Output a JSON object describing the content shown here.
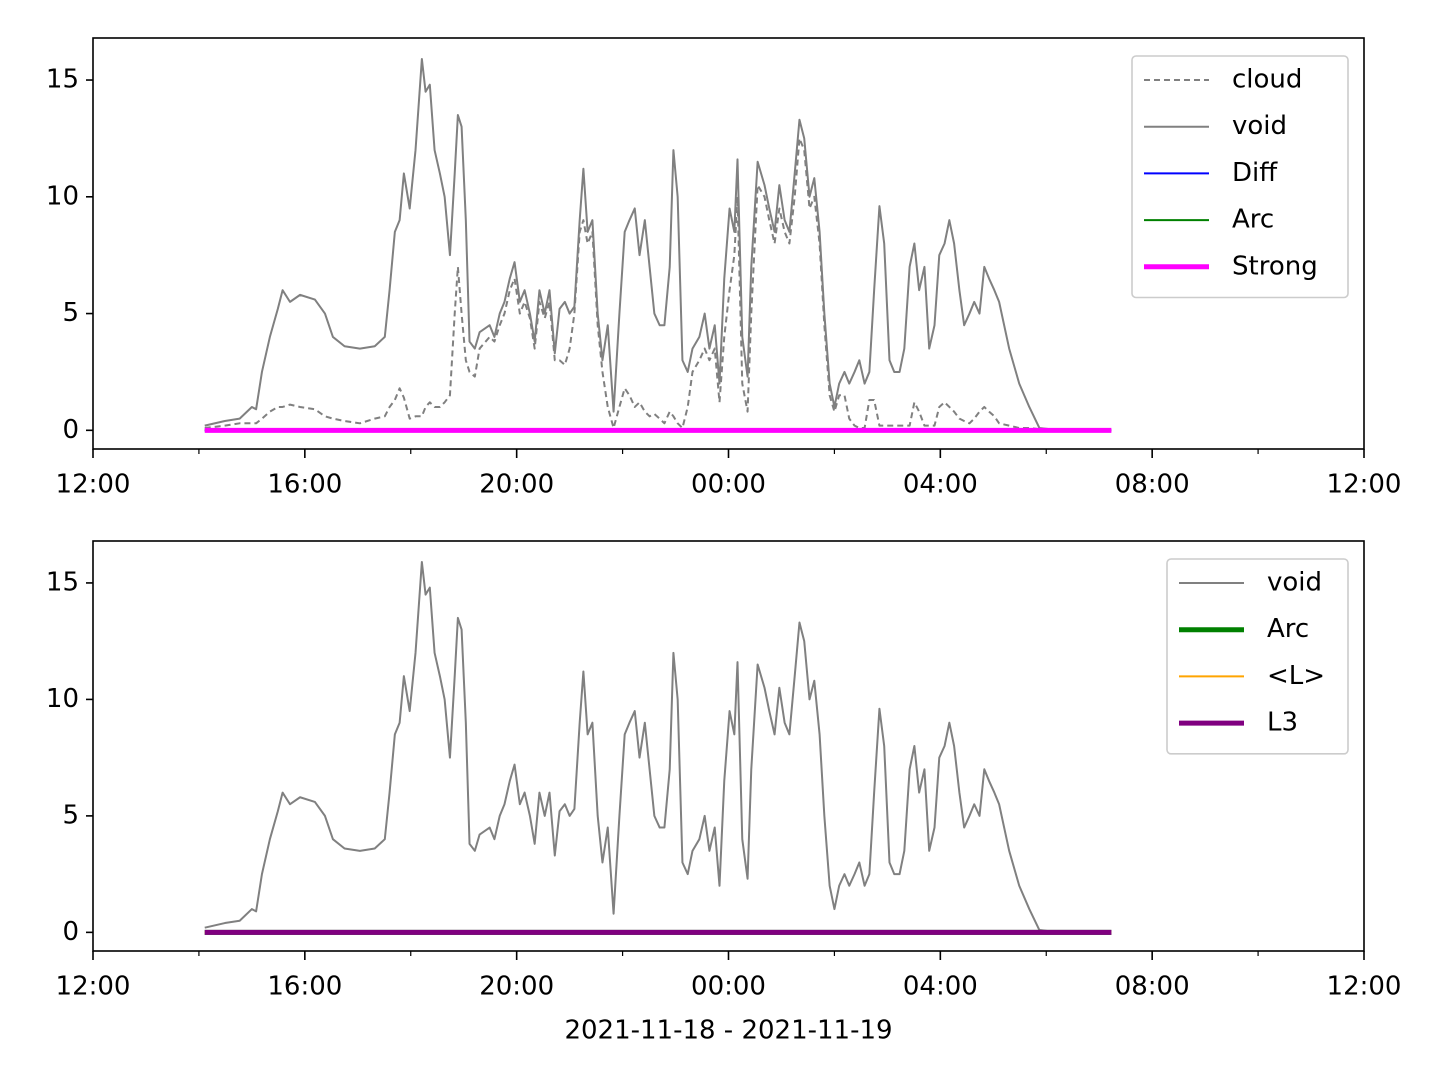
{
  "chart_data": [
    {
      "type": "line",
      "x": [
        14.11,
        14.49,
        14.77,
        15.0,
        15.08,
        15.19,
        15.34,
        15.49,
        15.58,
        15.72,
        15.91,
        16.19,
        16.38,
        16.53,
        16.75,
        17.04,
        17.32,
        17.51,
        17.6,
        17.7,
        17.79,
        17.87,
        17.98,
        18.09,
        18.21,
        18.28,
        18.36,
        18.45,
        18.55,
        18.64,
        18.74,
        18.83,
        18.89,
        18.96,
        19.04,
        19.11,
        19.21,
        19.3,
        19.49,
        19.58,
        19.68,
        19.77,
        19.87,
        19.96,
        20.06,
        20.15,
        20.25,
        20.34,
        20.43,
        20.53,
        20.62,
        20.72,
        20.81,
        20.91,
        21.0,
        21.09,
        21.19,
        21.26,
        21.34,
        21.43,
        21.53,
        21.62,
        21.72,
        21.83,
        21.94,
        22.04,
        22.13,
        22.23,
        22.32,
        22.42,
        22.51,
        22.6,
        22.7,
        22.79,
        22.89,
        22.96,
        23.04,
        23.13,
        23.23,
        23.32,
        23.45,
        23.55,
        23.64,
        23.74,
        23.83,
        23.92,
        24.02,
        24.11,
        24.17,
        24.26,
        24.36,
        24.43,
        24.55,
        24.68,
        24.77,
        24.87,
        24.96,
        25.06,
        25.15,
        25.25,
        25.34,
        25.43,
        25.53,
        25.62,
        25.72,
        25.81,
        25.91,
        26.0,
        26.09,
        26.19,
        26.28,
        26.38,
        26.47,
        26.57,
        26.66,
        26.75,
        26.85,
        26.94,
        27.04,
        27.13,
        27.23,
        27.32,
        27.42,
        27.51,
        27.6,
        27.7,
        27.79,
        27.89,
        27.98,
        28.08,
        28.17,
        28.26,
        28.36,
        28.45,
        28.55,
        28.64,
        28.74,
        28.83,
        28.92,
        29.02,
        29.11,
        29.3,
        29.49,
        29.68,
        29.87,
        30.06,
        30.62,
        31.19
      ],
      "series": [
        {
          "name": "cloud",
          "color": "#808080",
          "linestyle": "dashed",
          "linewidth": 2,
          "values": [
            0.1,
            0.2,
            0.3,
            0.3,
            0.3,
            0.5,
            0.8,
            1.0,
            1.0,
            1.1,
            1.0,
            0.9,
            0.6,
            0.5,
            0.4,
            0.3,
            0.5,
            0.6,
            1.0,
            1.3,
            1.8,
            1.4,
            0.5,
            0.6,
            0.6,
            1.0,
            1.2,
            1.0,
            1.0,
            1.2,
            1.5,
            5.0,
            7.0,
            5.0,
            3.0,
            2.5,
            2.3,
            3.5,
            4.0,
            3.8,
            4.5,
            5.0,
            6.0,
            6.5,
            5.0,
            5.5,
            4.8,
            3.5,
            5.5,
            4.8,
            5.5,
            3.0,
            3.0,
            2.8,
            3.5,
            5.0,
            8.5,
            9.0,
            8.0,
            8.5,
            4.5,
            2.5,
            1.0,
            0.1,
            1.0,
            1.8,
            1.5,
            1.0,
            1.2,
            0.8,
            0.6,
            0.7,
            0.5,
            0.3,
            0.8,
            0.6,
            0.3,
            0.1,
            1.0,
            2.5,
            3.0,
            3.5,
            3.0,
            3.5,
            1.2,
            4.0,
            6.0,
            7.5,
            10.0,
            2.0,
            0.8,
            5.0,
            10.5,
            10.0,
            9.0,
            8.0,
            9.5,
            8.5,
            8.0,
            10.0,
            12.5,
            12.0,
            9.5,
            10.0,
            8.0,
            4.5,
            1.5,
            0.8,
            1.5,
            1.5,
            0.5,
            0.2,
            0.1,
            0.1,
            1.3,
            1.3,
            0.2,
            0.2,
            0.2,
            0.2,
            0.2,
            0.2,
            0.2,
            1.2,
            0.8,
            0.2,
            0.2,
            0.2,
            1.0,
            1.2,
            1.0,
            0.8,
            0.5,
            0.4,
            0.3,
            0.5,
            0.8,
            1.0,
            0.8,
            0.6,
            0.3,
            0.2,
            0.1,
            0.1,
            0.05,
            0.05,
            0.05,
            0.0
          ]
        },
        {
          "name": "void",
          "color": "#808080",
          "linewidth": 2,
          "values": [
            0.2,
            0.4,
            0.5,
            1.0,
            0.9,
            2.5,
            4.0,
            5.2,
            6.0,
            5.5,
            5.8,
            5.6,
            5.0,
            4.0,
            3.6,
            3.5,
            3.6,
            4.0,
            6.0,
            8.5,
            9.0,
            11.0,
            9.5,
            12.0,
            15.9,
            14.5,
            14.8,
            12.0,
            11.0,
            10.0,
            7.5,
            11.0,
            13.5,
            13.0,
            9.0,
            3.8,
            3.5,
            4.2,
            4.5,
            4.0,
            5.0,
            5.5,
            6.5,
            7.2,
            5.5,
            6.0,
            5.0,
            3.8,
            6.0,
            5.0,
            6.0,
            3.3,
            5.2,
            5.5,
            5.0,
            5.3,
            9.0,
            11.2,
            8.5,
            9.0,
            5.0,
            3.0,
            4.5,
            0.8,
            5.0,
            8.5,
            9.0,
            9.5,
            7.5,
            9.0,
            7.0,
            5.0,
            4.5,
            4.5,
            7.0,
            12.0,
            10.0,
            3.0,
            2.5,
            3.5,
            4.0,
            5.0,
            3.5,
            4.5,
            2.0,
            6.5,
            9.5,
            8.5,
            11.6,
            4.0,
            2.3,
            7.0,
            11.5,
            10.5,
            9.5,
            8.5,
            10.5,
            9.0,
            8.5,
            11.0,
            13.3,
            12.5,
            10.0,
            10.8,
            8.5,
            5.0,
            2.0,
            1.0,
            2.0,
            2.5,
            2.0,
            2.5,
            3.0,
            2.0,
            2.5,
            6.0,
            9.6,
            8.0,
            3.0,
            2.5,
            2.5,
            3.5,
            7.0,
            8.0,
            6.0,
            7.0,
            3.5,
            4.5,
            7.5,
            8.0,
            9.0,
            8.0,
            6.0,
            4.5,
            5.0,
            5.5,
            5.0,
            7.0,
            6.5,
            6.0,
            5.5,
            3.5,
            2.0,
            1.0,
            0.1,
            0.05,
            0.05,
            0.0
          ]
        },
        {
          "name": "Diff",
          "color": "#0000ff",
          "linewidth": 2,
          "x": [
            14.11,
            31.23
          ],
          "values": [
            0,
            0
          ]
        },
        {
          "name": "Arc",
          "color": "#008000",
          "linewidth": 2,
          "x": [
            14.11,
            31.23
          ],
          "values": [
            0,
            0
          ]
        },
        {
          "name": "Strong",
          "color": "#ff00ff",
          "linewidth": 5,
          "x": [
            14.11,
            31.23
          ],
          "values": [
            0,
            0
          ]
        }
      ],
      "xlim": [
        12,
        36
      ],
      "xticks": [
        {
          "value": 12,
          "label": "12:00"
        },
        {
          "value": 16,
          "label": "16:00"
        },
        {
          "value": 20,
          "label": "20:00"
        },
        {
          "value": 24,
          "label": "00:00"
        },
        {
          "value": 28,
          "label": "04:00"
        },
        {
          "value": 32,
          "label": "08:00"
        },
        {
          "value": 36,
          "label": "12:00"
        }
      ],
      "xminor": [
        14,
        18,
        22,
        26,
        30,
        34
      ],
      "ylim": [
        -0.8,
        16.8
      ],
      "yticks": [
        0,
        5,
        10,
        15
      ],
      "legend": "upper right"
    },
    {
      "type": "line",
      "x": [
        14.11,
        14.49,
        14.77,
        15.0,
        15.08,
        15.19,
        15.34,
        15.49,
        15.58,
        15.72,
        15.91,
        16.19,
        16.38,
        16.53,
        16.75,
        17.04,
        17.32,
        17.51,
        17.6,
        17.7,
        17.79,
        17.87,
        17.98,
        18.09,
        18.21,
        18.28,
        18.36,
        18.45,
        18.55,
        18.64,
        18.74,
        18.83,
        18.89,
        18.96,
        19.04,
        19.11,
        19.21,
        19.3,
        19.49,
        19.58,
        19.68,
        19.77,
        19.87,
        19.96,
        20.06,
        20.15,
        20.25,
        20.34,
        20.43,
        20.53,
        20.62,
        20.72,
        20.81,
        20.91,
        21.0,
        21.09,
        21.19,
        21.26,
        21.34,
        21.43,
        21.53,
        21.62,
        21.72,
        21.83,
        21.94,
        22.04,
        22.13,
        22.23,
        22.32,
        22.42,
        22.51,
        22.6,
        22.7,
        22.79,
        22.89,
        22.96,
        23.04,
        23.13,
        23.23,
        23.32,
        23.45,
        23.55,
        23.64,
        23.74,
        23.83,
        23.92,
        24.02,
        24.11,
        24.17,
        24.26,
        24.36,
        24.43,
        24.55,
        24.68,
        24.77,
        24.87,
        24.96,
        25.06,
        25.15,
        25.25,
        25.34,
        25.43,
        25.53,
        25.62,
        25.72,
        25.81,
        25.91,
        26.0,
        26.09,
        26.19,
        26.28,
        26.38,
        26.47,
        26.57,
        26.66,
        26.75,
        26.85,
        26.94,
        27.04,
        27.13,
        27.23,
        27.32,
        27.42,
        27.51,
        27.6,
        27.7,
        27.79,
        27.89,
        27.98,
        28.08,
        28.17,
        28.26,
        28.36,
        28.45,
        28.55,
        28.64,
        28.74,
        28.83,
        28.92,
        29.02,
        29.11,
        29.3,
        29.49,
        29.68,
        29.87,
        30.06,
        30.62,
        31.19
      ],
      "series": [
        {
          "name": "void",
          "color": "#808080",
          "linewidth": 2,
          "values": [
            0.2,
            0.4,
            0.5,
            1.0,
            0.9,
            2.5,
            4.0,
            5.2,
            6.0,
            5.5,
            5.8,
            5.6,
            5.0,
            4.0,
            3.6,
            3.5,
            3.6,
            4.0,
            6.0,
            8.5,
            9.0,
            11.0,
            9.5,
            12.0,
            15.9,
            14.5,
            14.8,
            12.0,
            11.0,
            10.0,
            7.5,
            11.0,
            13.5,
            13.0,
            9.0,
            3.8,
            3.5,
            4.2,
            4.5,
            4.0,
            5.0,
            5.5,
            6.5,
            7.2,
            5.5,
            6.0,
            5.0,
            3.8,
            6.0,
            5.0,
            6.0,
            3.3,
            5.2,
            5.5,
            5.0,
            5.3,
            9.0,
            11.2,
            8.5,
            9.0,
            5.0,
            3.0,
            4.5,
            0.8,
            5.0,
            8.5,
            9.0,
            9.5,
            7.5,
            9.0,
            7.0,
            5.0,
            4.5,
            4.5,
            7.0,
            12.0,
            10.0,
            3.0,
            2.5,
            3.5,
            4.0,
            5.0,
            3.5,
            4.5,
            2.0,
            6.5,
            9.5,
            8.5,
            11.6,
            4.0,
            2.3,
            7.0,
            11.5,
            10.5,
            9.5,
            8.5,
            10.5,
            9.0,
            8.5,
            11.0,
            13.3,
            12.5,
            10.0,
            10.8,
            8.5,
            5.0,
            2.0,
            1.0,
            2.0,
            2.5,
            2.0,
            2.5,
            3.0,
            2.0,
            2.5,
            6.0,
            9.6,
            8.0,
            3.0,
            2.5,
            2.5,
            3.5,
            7.0,
            8.0,
            6.0,
            7.0,
            3.5,
            4.5,
            7.5,
            8.0,
            9.0,
            8.0,
            6.0,
            4.5,
            5.0,
            5.5,
            5.0,
            7.0,
            6.5,
            6.0,
            5.5,
            3.5,
            2.0,
            1.0,
            0.1,
            0.05,
            0.05,
            0.0
          ]
        },
        {
          "name": "Arc",
          "color": "#008000",
          "linewidth": 5,
          "x": [
            14.11,
            31.23
          ],
          "values": [
            0,
            0
          ]
        },
        {
          "name": "<L>",
          "color": "#ffa500",
          "linewidth": 2,
          "x": [
            14.11,
            31.23
          ],
          "values": [
            0,
            0
          ]
        },
        {
          "name": "L3",
          "color": "#800080",
          "linewidth": 5,
          "x": [
            14.11,
            31.23
          ],
          "values": [
            0,
            0
          ]
        }
      ],
      "xlabel": "2021-11-18 - 2021-11-19",
      "xlim": [
        12,
        36
      ],
      "xticks": [
        {
          "value": 12,
          "label": "12:00"
        },
        {
          "value": 16,
          "label": "16:00"
        },
        {
          "value": 20,
          "label": "20:00"
        },
        {
          "value": 24,
          "label": "00:00"
        },
        {
          "value": 28,
          "label": "04:00"
        },
        {
          "value": 32,
          "label": "08:00"
        },
        {
          "value": 36,
          "label": "12:00"
        }
      ],
      "xminor": [
        14,
        18,
        22,
        26,
        30,
        34
      ],
      "ylim": [
        -0.8,
        16.8
      ],
      "yticks": [
        0,
        5,
        10,
        15
      ],
      "legend": "upper right"
    }
  ]
}
